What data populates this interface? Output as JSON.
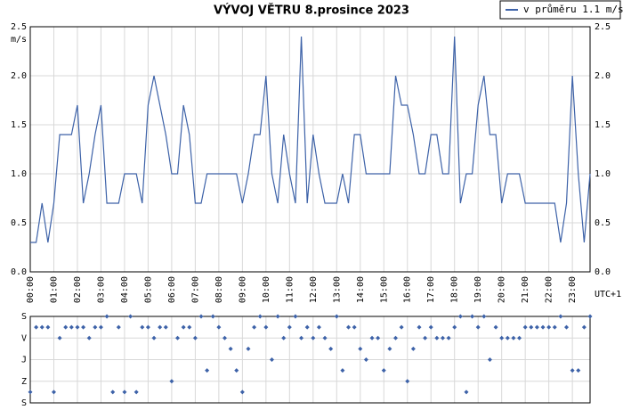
{
  "chart_data": [
    {
      "type": "line",
      "title": "VÝVOJ VĚTRU  8.prosince 2023",
      "y_unit": "m/s",
      "x_note": "UTC+1",
      "categories": [
        "00:00",
        null,
        null,
        null,
        "01:00",
        null,
        null,
        null,
        "02:00",
        null,
        null,
        null,
        "03:00",
        null,
        null,
        null,
        "04:00",
        null,
        null,
        null,
        "05:00",
        null,
        null,
        null,
        "06:00",
        null,
        null,
        null,
        "07:00",
        null,
        null,
        null,
        "08:00",
        null,
        null,
        null,
        "09:00",
        null,
        null,
        null,
        "10:00",
        null,
        null,
        null,
        "11:00",
        null,
        null,
        null,
        "12:00",
        null,
        null,
        null,
        "13:00",
        null,
        null,
        null,
        "14:00",
        null,
        null,
        null,
        "15:00",
        null,
        null,
        null,
        "16:00",
        null,
        null,
        null,
        "17:00",
        null,
        null,
        null,
        "18:00",
        null,
        null,
        null,
        "19:00",
        null,
        null,
        null,
        "20:00",
        null,
        null,
        null,
        "21:00",
        null,
        null,
        null,
        "22:00",
        null,
        null,
        null,
        "23:00",
        null,
        null,
        null
      ],
      "series": [
        {
          "name": "v průměru 1.1 m/s",
          "color": "#3d62a8",
          "values": [
            0.3,
            0.3,
            0.7,
            0.3,
            0.7,
            1.4,
            1.4,
            1.4,
            1.7,
            0.7,
            1.0,
            1.4,
            1.7,
            0.7,
            0.7,
            0.7,
            1.0,
            1.0,
            1.0,
            0.7,
            1.7,
            2.0,
            1.7,
            1.4,
            1.0,
            1.0,
            1.7,
            1.4,
            0.7,
            0.7,
            1.0,
            1.0,
            1.0,
            1.0,
            1.0,
            1.0,
            0.7,
            1.0,
            1.4,
            1.4,
            2.0,
            1.0,
            0.7,
            1.4,
            1.0,
            0.7,
            2.4,
            0.7,
            1.4,
            1.0,
            0.7,
            0.7,
            0.7,
            1.0,
            0.7,
            1.4,
            1.4,
            1.0,
            1.0,
            1.0,
            1.0,
            1.0,
            2.0,
            1.7,
            1.7,
            1.4,
            1.0,
            1.0,
            1.4,
            1.4,
            1.0,
            1.0,
            2.4,
            0.7,
            1.0,
            1.0,
            1.7,
            2.0,
            1.4,
            1.4,
            0.7,
            1.0,
            1.0,
            1.0,
            0.7,
            0.7,
            0.7,
            0.7,
            0.7,
            0.7,
            0.3,
            0.7,
            2.0,
            1.0,
            0.3,
            1.0
          ]
        }
      ],
      "ylim": [
        0,
        2.5
      ],
      "yticks": [
        {
          "value": 0,
          "label": "0.0"
        },
        {
          "value": 0.5,
          "label": "0.5"
        },
        {
          "value": 1,
          "label": "1.0"
        },
        {
          "value": 1.5,
          "label": "1.5"
        },
        {
          "value": 2,
          "label": "2.0"
        },
        {
          "value": 2.5,
          "label": "2.5"
        }
      ],
      "grid": true
    },
    {
      "type": "scatter",
      "color": "#3d62a8",
      "values": [
        315,
        45,
        45,
        45,
        315,
        90,
        45,
        45,
        45,
        45,
        90,
        45,
        45,
        0,
        315,
        45,
        315,
        0,
        315,
        45,
        45,
        90,
        45,
        45,
        270,
        90,
        45,
        45,
        90,
        0,
        225,
        0,
        45,
        90,
        135,
        225,
        315,
        135,
        45,
        0,
        45,
        180,
        0,
        90,
        45,
        0,
        90,
        45,
        90,
        45,
        90,
        135,
        0,
        225,
        45,
        45,
        135,
        180,
        90,
        90,
        225,
        135,
        90,
        45,
        270,
        135,
        45,
        90,
        45,
        90,
        90,
        90,
        45,
        0,
        315,
        0,
        45,
        0,
        180,
        45,
        90,
        90,
        90,
        90,
        45,
        45,
        45,
        45,
        45,
        45,
        0,
        45,
        225,
        225,
        45,
        0
      ],
      "ylim": [
        0,
        360
      ],
      "yticks": [
        {
          "value": 0,
          "label": "S"
        },
        {
          "value": 90,
          "label": "V"
        },
        {
          "value": 180,
          "label": "J"
        },
        {
          "value": 270,
          "label": "Z"
        },
        {
          "value": 360,
          "label": "S"
        }
      ],
      "grid": true
    }
  ]
}
